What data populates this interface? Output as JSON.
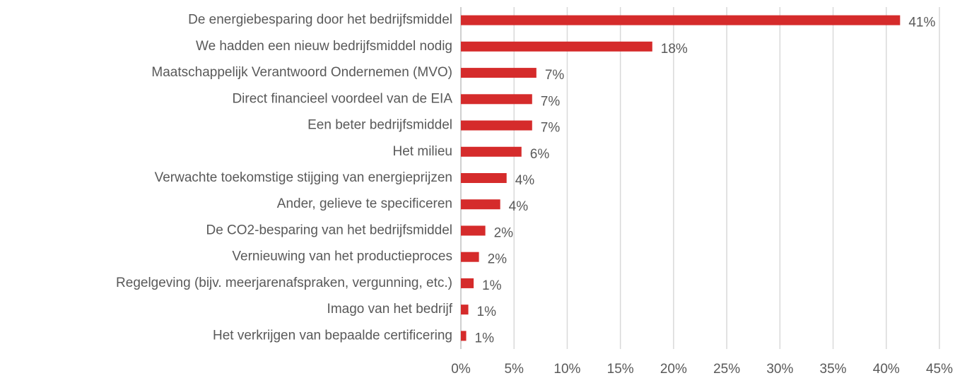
{
  "chart_data": {
    "type": "hbar",
    "categories": [
      "De energiebesparing door het bedrijfsmiddel",
      "We hadden een nieuw bedrijfsmiddel nodig",
      "Maatschappelijk Verantwoord Ondernemen (MVO)",
      "Direct financieel voordeel van de EIA",
      "Een beter bedrijfsmiddel",
      "Het milieu",
      "Verwachte toekomstige stijging van energieprijzen",
      "Ander, gelieve te specificeren",
      "De CO2-besparing van het bedrijfsmiddel",
      "Vernieuwing van het productieproces",
      "Regelgeving (bijv. meerjarenafspraken, vergunning, etc.)",
      "Imago van het bedrijf",
      "Het verkrijgen van bepaalde certificering"
    ],
    "values": [
      41.3,
      18,
      7.1,
      6.7,
      6.7,
      5.7,
      4.3,
      3.7,
      2.3,
      1.7,
      1.2,
      0.7,
      0.5
    ],
    "value_labels": [
      "41%",
      "18%",
      "7%",
      "7%",
      "7%",
      "6%",
      "4%",
      "4%",
      "2%",
      "2%",
      "1%",
      "1%",
      "1%"
    ],
    "color": "#d52b2b",
    "xlim": [
      0,
      45
    ],
    "xticks": [
      {
        "value": 0,
        "label": "0%"
      },
      {
        "value": 5,
        "label": "5%"
      },
      {
        "value": 10,
        "label": "10%"
      },
      {
        "value": 15,
        "label": "15%"
      },
      {
        "value": 20,
        "label": "20%"
      },
      {
        "value": 25,
        "label": "25%"
      },
      {
        "value": 30,
        "label": "30%"
      },
      {
        "value": 35,
        "label": "35%"
      },
      {
        "value": 40,
        "label": "40%"
      },
      {
        "value": 45,
        "label": "45%"
      }
    ],
    "grid": true
  }
}
